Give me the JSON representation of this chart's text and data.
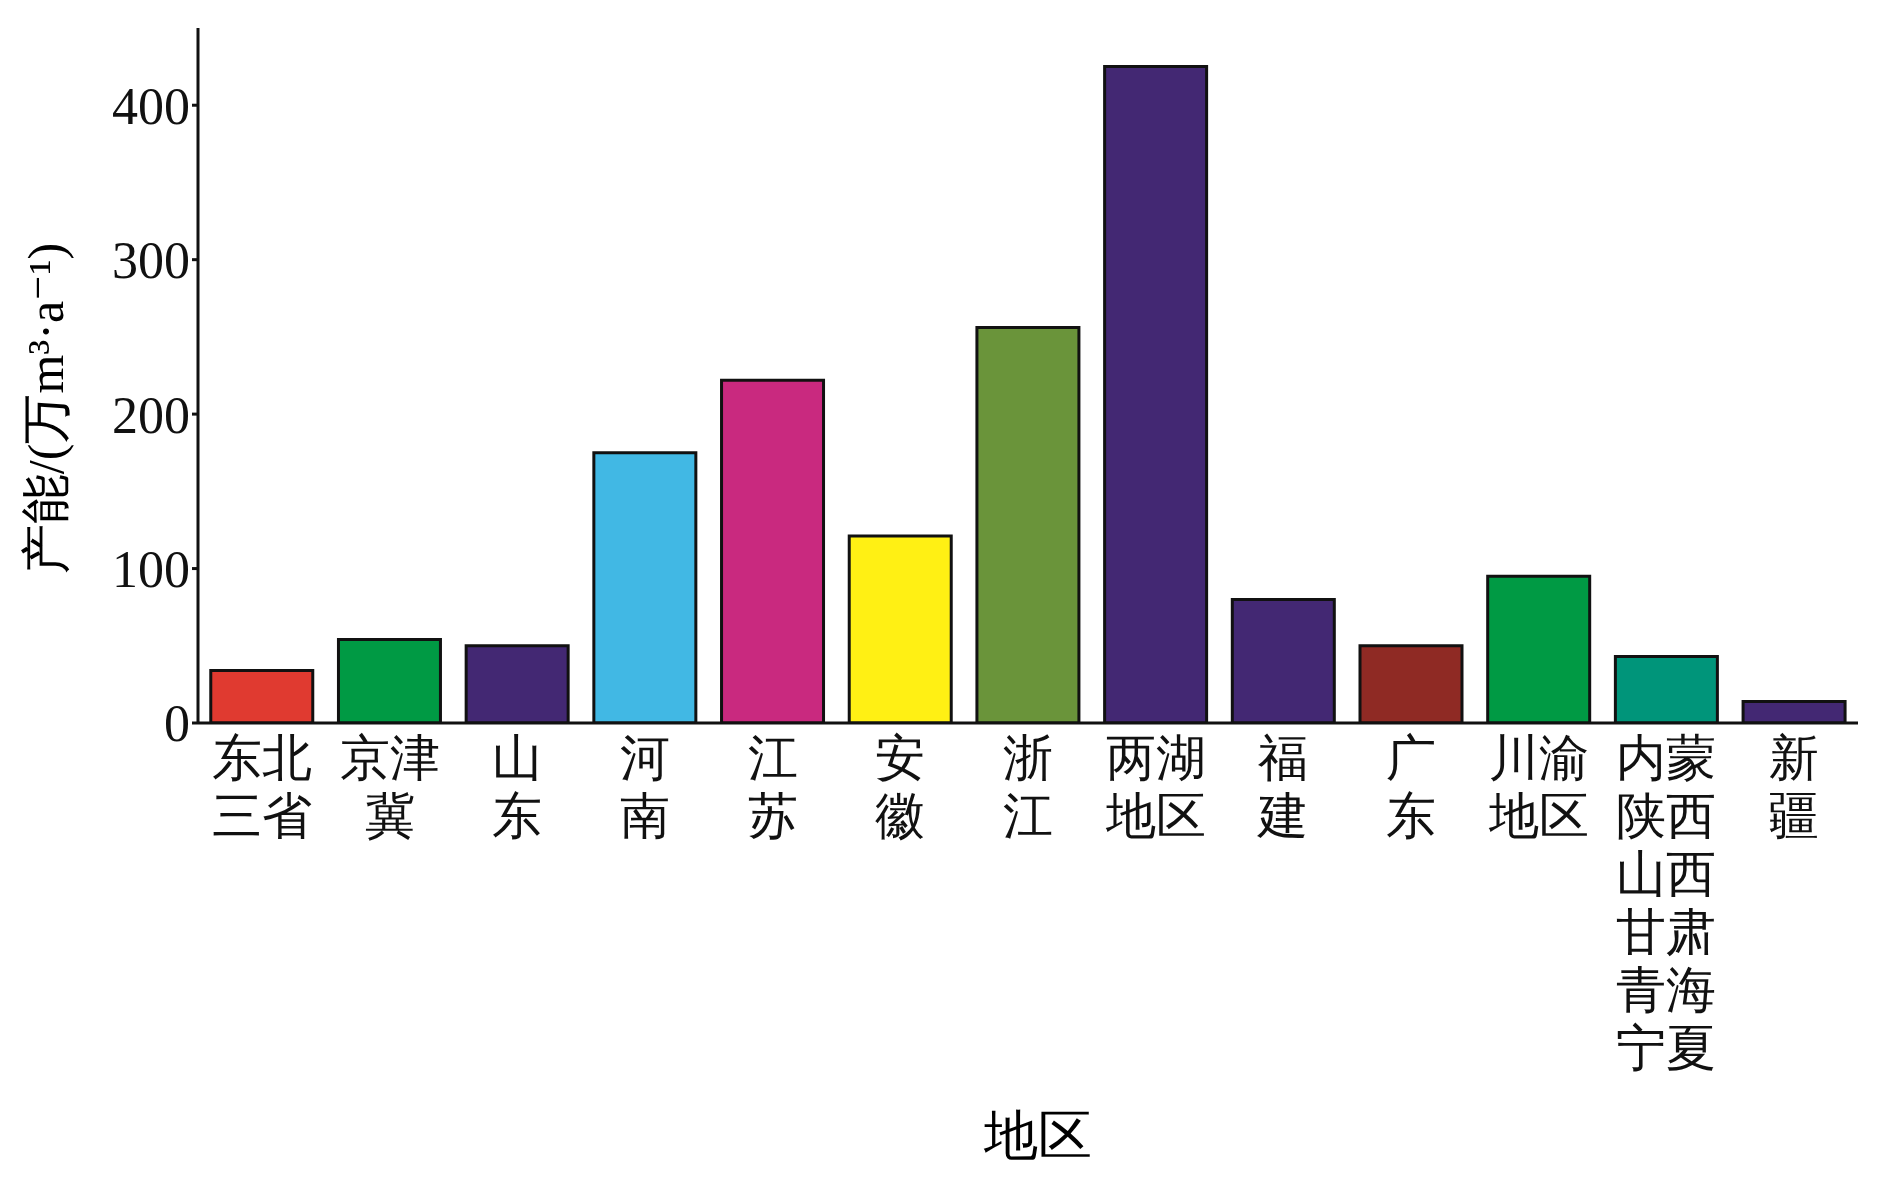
{
  "chart_data": {
    "type": "bar",
    "xlabel": "地区",
    "ylabel": "产能/(万m³·a⁻¹)",
    "categories": [
      "东北三省",
      "京津冀",
      "山东",
      "河南",
      "江苏",
      "安徽",
      "浙江",
      "两湖地区",
      "福建",
      "广东",
      "川渝地区",
      "内蒙陕西山西甘肃青海宁夏",
      "新疆"
    ],
    "values": [
      34,
      54,
      50,
      175,
      222,
      121,
      256,
      425,
      80,
      50,
      95,
      43,
      14
    ],
    "colors": [
      "#e03a30",
      "#009a44",
      "#432873",
      "#41b8e4",
      "#c9297f",
      "#fff014",
      "#6a943a",
      "#432873",
      "#432873",
      "#8f2a24",
      "#009a44",
      "#00957a",
      "#432873"
    ],
    "ylim": [
      0,
      450
    ],
    "yticks": [
      0,
      100,
      200,
      300,
      400
    ],
    "grid": false,
    "legend": false
  }
}
